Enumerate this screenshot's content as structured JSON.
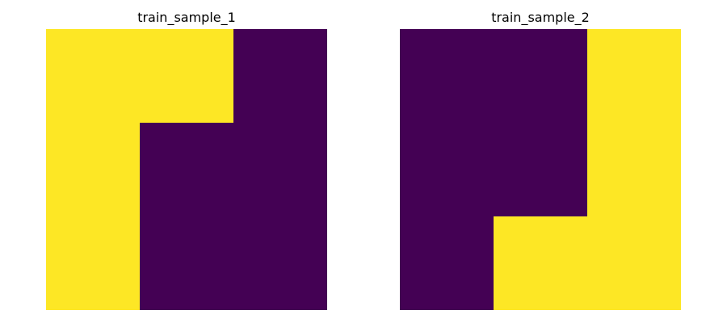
{
  "colors": {
    "0": "#440154",
    "1": "#FDE725",
    "background": "#ffffff"
  },
  "chart_data": [
    {
      "type": "heatmap",
      "title": "train_sample_1",
      "colormap": "viridis",
      "axes_visible": false,
      "grid": false,
      "rows": 3,
      "cols": 3,
      "values": [
        [
          1,
          1,
          0
        ],
        [
          1,
          0,
          0
        ],
        [
          1,
          0,
          0
        ]
      ]
    },
    {
      "type": "heatmap",
      "title": "train_sample_2",
      "colormap": "viridis",
      "axes_visible": false,
      "grid": false,
      "rows": 3,
      "cols": 3,
      "values": [
        [
          0,
          0,
          1
        ],
        [
          0,
          0,
          1
        ],
        [
          0,
          1,
          1
        ]
      ]
    }
  ]
}
